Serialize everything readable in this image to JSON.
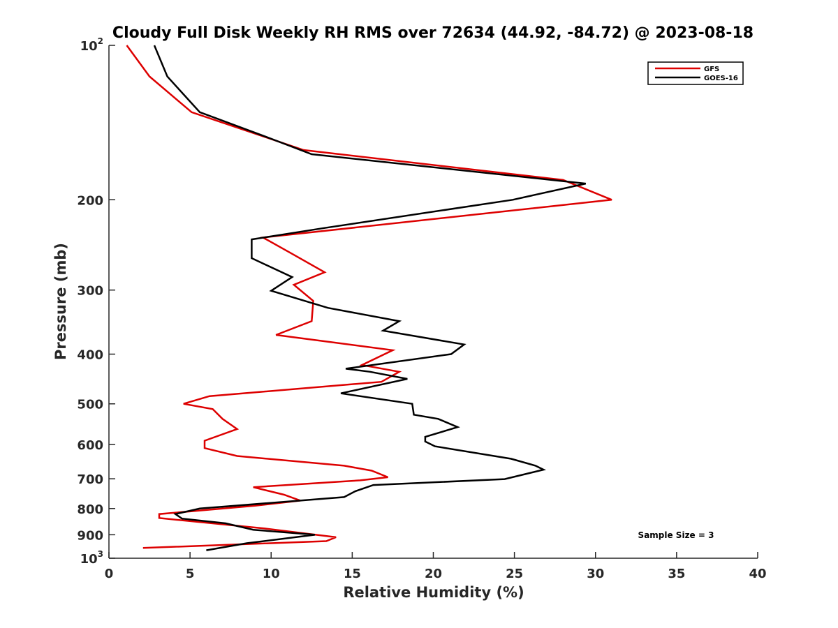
{
  "chart_data": {
    "type": "line",
    "title": "Cloudy Full Disk Weekly RH RMS over 72634 (44.92, -84.72) @ 2023-08-18",
    "xlabel": "Relative Humidity (%)",
    "ylabel": "Pressure (mb)",
    "xlim": [
      0,
      40
    ],
    "ylim": [
      100,
      1000
    ],
    "y_scale": "log",
    "y_reversed": true,
    "x_ticks": [
      0,
      5,
      10,
      15,
      20,
      25,
      30,
      35,
      40
    ],
    "x_tick_labels": [
      "0",
      "5",
      "10",
      "15",
      "20",
      "25",
      "30",
      "35",
      "40"
    ],
    "y_ticks": [
      100,
      200,
      300,
      400,
      500,
      600,
      700,
      800,
      900,
      1000
    ],
    "y_tick_labels": [
      {
        "base": "10",
        "sup": "2"
      },
      {
        "base": "200",
        "sup": ""
      },
      {
        "base": "300",
        "sup": ""
      },
      {
        "base": "400",
        "sup": ""
      },
      {
        "base": "500",
        "sup": ""
      },
      {
        "base": "600",
        "sup": ""
      },
      {
        "base": "700",
        "sup": ""
      },
      {
        "base": "800",
        "sup": ""
      },
      {
        "base": "900",
        "sup": ""
      },
      {
        "base": "10",
        "sup": "3"
      }
    ],
    "grid": false,
    "legend_position": "top-right",
    "annotation": "Sample Size = 3",
    "series": [
      {
        "name": "GFS",
        "color": "#dd0000",
        "x": [
          1.1,
          2.5,
          5.1,
          12.0,
          28.0,
          31.0,
          9.5,
          11.3,
          13.3,
          11.4,
          12.6,
          12.5,
          10.3,
          17.5,
          15.6,
          17.9,
          16.8,
          6.2,
          4.6,
          6.4,
          7.0,
          7.9,
          5.9,
          5.9,
          7.9,
          14.5,
          16.2,
          17.2,
          15.5,
          8.9,
          10.8,
          11.8,
          9.0,
          3.1,
          3.1,
          9.6,
          14.0,
          13.4,
          2.1
        ],
        "y": [
          100,
          115,
          135,
          160,
          183,
          200,
          237,
          255,
          277,
          293,
          315,
          345,
          367,
          393,
          420,
          433,
          453,
          483,
          500,
          512,
          535,
          560,
          590,
          610,
          632,
          660,
          675,
          695,
          705,
          727,
          752,
          772,
          790,
          820,
          835,
          875,
          910,
          926,
          955
        ]
      },
      {
        "name": "GOES-16",
        "color": "#000000",
        "x": [
          2.8,
          3.6,
          5.6,
          9.5,
          12.5,
          29.4,
          24.9,
          13.3,
          8.8,
          8.8,
          11.3,
          10.0,
          13.5,
          17.9,
          16.9,
          21.9,
          21.1,
          14.6,
          16.1,
          18.4,
          14.3,
          18.7,
          18.8,
          20.3,
          21.5,
          19.5,
          19.5,
          20.1,
          24.8,
          26.3,
          26.8,
          24.4,
          16.3,
          15.2,
          14.5,
          5.6,
          4.1,
          4.5,
          7.2,
          8.9,
          12.7,
          8.5,
          6.0
        ],
        "y": [
          100,
          115,
          135,
          150,
          163,
          186,
          200,
          227,
          239,
          260,
          283,
          301,
          325,
          345,
          360,
          383,
          400,
          427,
          433,
          447,
          477,
          500,
          525,
          535,
          555,
          580,
          592,
          605,
          640,
          660,
          672,
          701,
          720,
          740,
          760,
          800,
          820,
          837,
          855,
          880,
          900,
          935,
          965
        ]
      }
    ]
  }
}
